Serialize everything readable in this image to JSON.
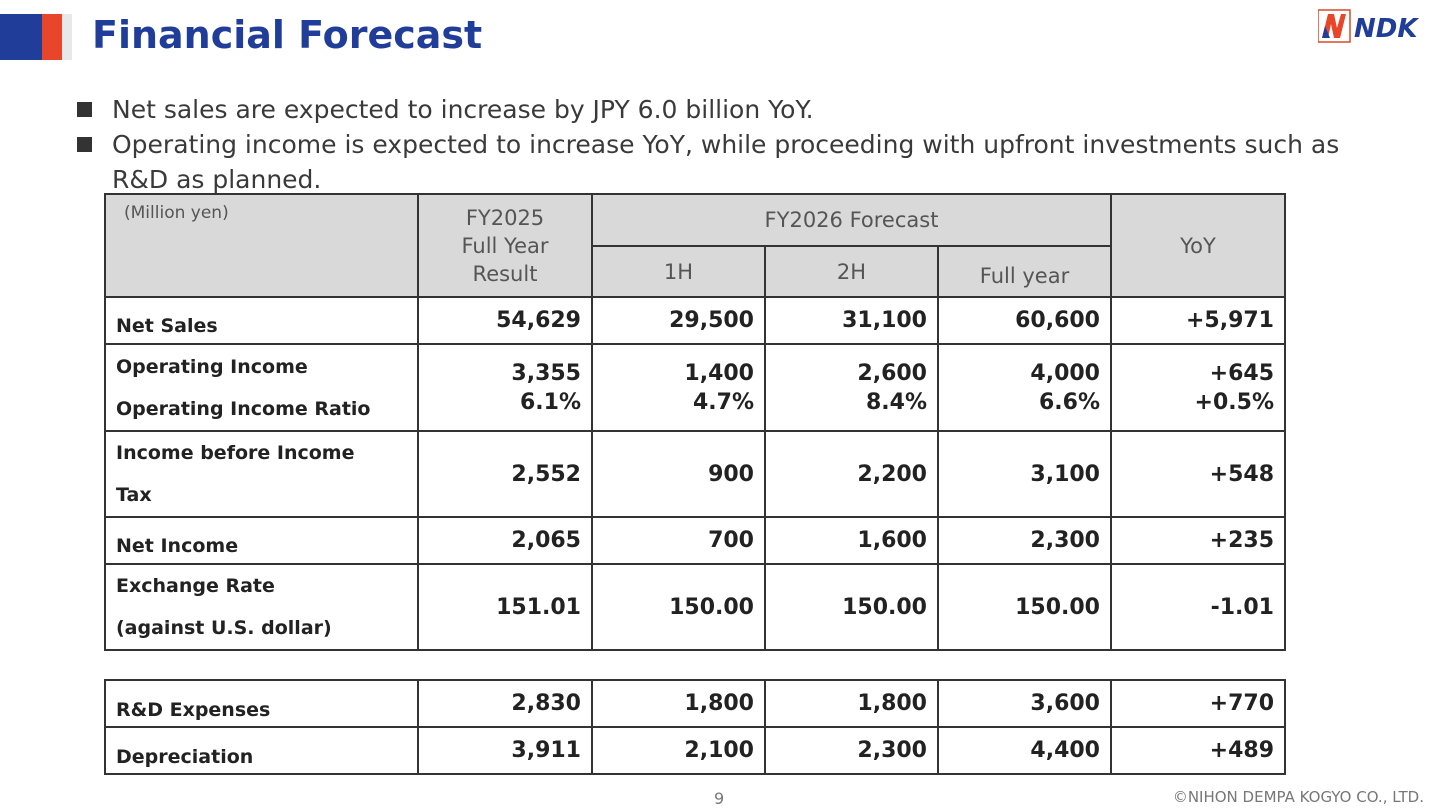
{
  "header": {
    "title": "Financial Forecast",
    "logo_text": "NDK",
    "colors": {
      "title": "#1f3d99",
      "accent_red": "#e8462a",
      "accent_blue": "#1f3d99"
    }
  },
  "bullets": [
    "Net sales are expected to increase by JPY 6.0 billion YoY.",
    "Operating income is expected to increase YoY, while proceeding with upfront investments such as R&D as planned."
  ],
  "table": {
    "unit": "(Million yen)",
    "col_fy2025": [
      "FY2025",
      "Full Year",
      "Result"
    ],
    "col_forecast": "FY2026 Forecast",
    "col_1h": "1H",
    "col_2h": "2H",
    "col_full": "Full year",
    "col_yoy": "YoY",
    "rows": [
      {
        "label": "Net Sales",
        "fy2025": "54,629",
        "h1": "29,500",
        "h2": "31,100",
        "full": "60,600",
        "yoy": "+5,971"
      },
      {
        "label": "Operating Income",
        "label2": "Operating Income Ratio",
        "fy2025": "3,355",
        "fy2025b": "6.1%",
        "h1": "1,400",
        "h1b": "4.7%",
        "h2": "2,600",
        "h2b": "8.4%",
        "full": "4,000",
        "fullb": "6.6%",
        "yoy": "+645",
        "yoyb": "+0.5%"
      },
      {
        "label": "Income before Income",
        "label2": "Tax",
        "fy2025": "2,552",
        "h1": "900",
        "h2": "2,200",
        "full": "3,100",
        "yoy": "+548"
      },
      {
        "label": "Net Income",
        "fy2025": "2,065",
        "h1": "700",
        "h2": "1,600",
        "full": "2,300",
        "yoy": "+235"
      },
      {
        "label": "Exchange Rate",
        "label2": "(against U.S. dollar)",
        "fy2025": "151.01",
        "h1": "150.00",
        "h2": "150.00",
        "full": "150.00",
        "yoy": "-1.01"
      }
    ],
    "extra_rows": [
      {
        "label": "R&D Expenses",
        "fy2025": "2,830",
        "h1": "1,800",
        "h2": "1,800",
        "full": "3,600",
        "yoy": "+770"
      },
      {
        "label": "Depreciation",
        "fy2025": "3,911",
        "h1": "2,100",
        "h2": "2,300",
        "full": "4,400",
        "yoy": "+489"
      }
    ]
  },
  "footer": {
    "page_number": "9",
    "copyright": "©NIHON DEMPA KOGYO CO., LTD."
  }
}
